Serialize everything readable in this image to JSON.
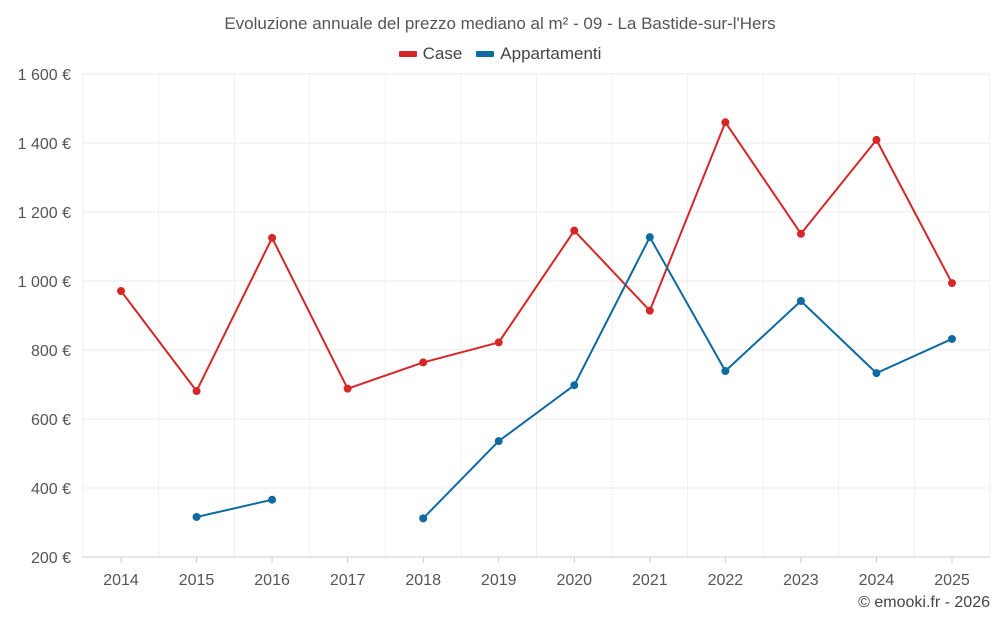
{
  "chart_data": {
    "type": "line",
    "title": "Evoluzione annuale del prezzo mediano al m² - 09 - La Bastide-sur-l'Hers",
    "x": [
      "2014",
      "2015",
      "2016",
      "2017",
      "2018",
      "2019",
      "2020",
      "2021",
      "2022",
      "2023",
      "2024",
      "2025"
    ],
    "ylim": [
      200,
      1600
    ],
    "yticks": [
      200,
      400,
      600,
      800,
      1000,
      1200,
      1400,
      1600
    ],
    "ytick_labels": [
      "200 €",
      "400 €",
      "600 €",
      "800 €",
      "1 000 €",
      "1 200 €",
      "1 400 €",
      "1 600 €"
    ],
    "grid": true,
    "legend_position": "top-center",
    "series": [
      {
        "name": "Case",
        "color": "#d62728",
        "values": [
          971,
          681,
          1125,
          688,
          764,
          822,
          1146,
          914,
          1460,
          1137,
          1409,
          994
        ]
      },
      {
        "name": "Appartamenti",
        "color": "#0e6aa0",
        "values": [
          null,
          316,
          366,
          null,
          312,
          536,
          698,
          1127,
          739,
          942,
          733,
          832
        ]
      }
    ]
  },
  "footer": {
    "credit": "© emooki.fr - 2026"
  }
}
